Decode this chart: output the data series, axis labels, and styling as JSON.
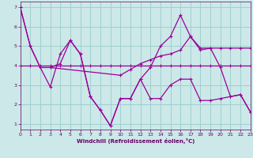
{
  "line_flat": {
    "x": [
      0,
      1,
      2,
      3,
      4,
      5,
      6,
      7,
      8,
      9,
      10,
      11,
      12,
      13,
      14,
      15,
      16,
      17,
      18,
      19,
      20,
      21,
      22,
      23
    ],
    "y": [
      4.0,
      4.0,
      4.0,
      4.0,
      4.0,
      4.0,
      4.0,
      4.0,
      4.0,
      4.0,
      4.0,
      4.0,
      4.0,
      4.0,
      4.0,
      4.0,
      4.0,
      4.0,
      4.0,
      4.0,
      4.0,
      4.0,
      4.0,
      4.0
    ]
  },
  "line_steep": {
    "x": [
      0,
      1,
      2,
      3,
      10,
      11,
      12,
      13,
      14,
      15,
      16,
      17,
      18,
      19,
      20,
      21,
      22,
      23
    ],
    "y": [
      7.0,
      5.0,
      3.9,
      3.9,
      3.5,
      3.8,
      4.1,
      4.3,
      4.5,
      4.6,
      4.8,
      5.5,
      4.8,
      4.9,
      4.9,
      4.9,
      4.9,
      4.9
    ]
  },
  "line_jagged": {
    "x": [
      0,
      1,
      2,
      3,
      4,
      5,
      6,
      7,
      8,
      9,
      10,
      11,
      12,
      13,
      14,
      15,
      16,
      17,
      18,
      19,
      20,
      21,
      22,
      23
    ],
    "y": [
      7.0,
      5.0,
      3.9,
      2.9,
      4.6,
      5.3,
      4.6,
      2.4,
      1.7,
      0.9,
      2.3,
      2.3,
      3.3,
      2.3,
      2.3,
      3.0,
      3.3,
      3.3,
      2.2,
      2.2,
      2.3,
      2.4,
      2.5,
      1.6
    ]
  },
  "line_peak": {
    "x": [
      3,
      4,
      5,
      6,
      7,
      8,
      9,
      10,
      11,
      12,
      13,
      14,
      15,
      16,
      17,
      18,
      19,
      20,
      21,
      22,
      23
    ],
    "y": [
      3.9,
      4.1,
      5.3,
      4.6,
      2.4,
      1.7,
      0.9,
      2.3,
      2.3,
      3.3,
      3.9,
      5.0,
      5.5,
      6.6,
      5.5,
      4.9,
      4.9,
      3.9,
      2.4,
      2.5,
      1.6
    ]
  },
  "bg_color": "#cce8e8",
  "grid_color": "#99cccc",
  "line_color": "#990099",
  "axis_color": "#660066",
  "xlabel": "Windchill (Refroidissement éolien,°C)",
  "xlim": [
    0,
    23
  ],
  "ylim": [
    0.7,
    7.3
  ],
  "xticks": [
    0,
    1,
    2,
    3,
    4,
    5,
    6,
    7,
    8,
    9,
    10,
    11,
    12,
    13,
    14,
    15,
    16,
    17,
    18,
    19,
    20,
    21,
    22,
    23
  ],
  "yticks": [
    1,
    2,
    3,
    4,
    5,
    6,
    7
  ],
  "linewidth": 0.9,
  "markersize": 3.0
}
